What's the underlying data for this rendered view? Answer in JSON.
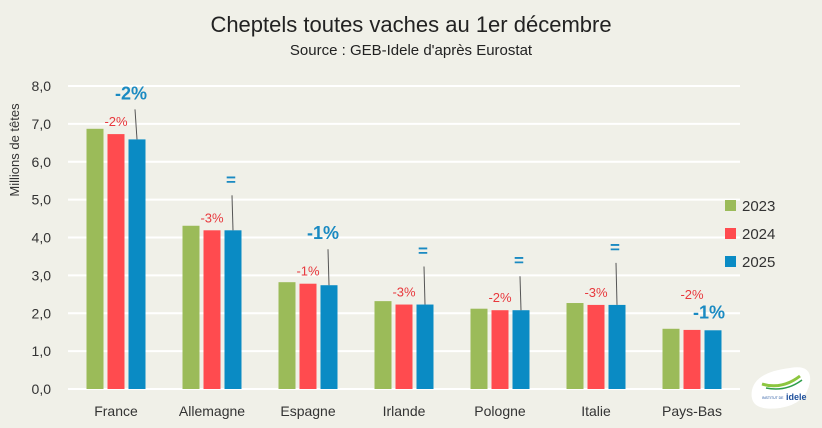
{
  "chart_data": {
    "type": "bar",
    "title": "Cheptels toutes vaches au 1er décembre",
    "subtitle": "Source : GEB-Idele d'après Eurostat",
    "xlabel": "",
    "ylabel": "Millions de têtes",
    "ylim": [
      0,
      8
    ],
    "yticks": [
      "0,0",
      "1,0",
      "2,0",
      "3,0",
      "4,0",
      "5,0",
      "6,0",
      "7,0",
      "8,0"
    ],
    "grid": true,
    "legend_position": "right",
    "categories": [
      "France",
      "Allemagne",
      "Espagne",
      "Irlande",
      "Pologne",
      "Italie",
      "Pays-Bas"
    ],
    "series": [
      {
        "name": "2023",
        "color": "#9bbb59",
        "values": [
          6.87,
          4.31,
          2.82,
          2.32,
          2.12,
          2.27,
          1.59
        ]
      },
      {
        "name": "2024",
        "color": "#ff4b4f",
        "values": [
          6.73,
          4.19,
          2.78,
          2.23,
          2.08,
          2.22,
          1.56
        ]
      },
      {
        "name": "2025",
        "color": "#0a8bc4",
        "values": [
          6.59,
          4.19,
          2.74,
          2.23,
          2.08,
          2.22,
          1.55
        ]
      }
    ],
    "annotations_2024": [
      "-2%",
      "-3%",
      "-1%",
      "-3%",
      "-2%",
      "-3%",
      "-2%"
    ],
    "annotations_2025": [
      "-2%",
      "=",
      "-1%",
      "=",
      "=",
      "=",
      "-1%"
    ]
  },
  "logo": {
    "text": "INSTITUT DE L'ÉLEVAGE idele"
  }
}
